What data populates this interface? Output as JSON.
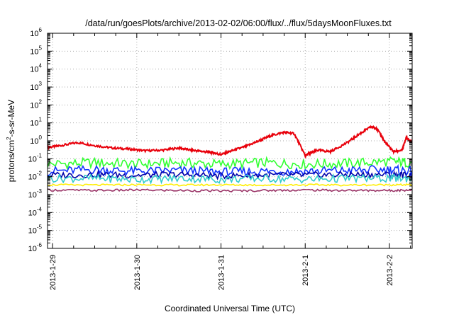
{
  "chart_data": {
    "type": "line",
    "title": "/data/run/goesPlots/archive/2013-02-02/06:00/flux/../flux/5daysMoonFluxes.txt",
    "xlabel": "Coordinated Universal Time (UTC)",
    "ylabel": {
      "prefix": "protons/cm",
      "sup": "2",
      "suffix": "-s-sr-MeV"
    },
    "y_scale": "log",
    "ylim": [
      1e-06,
      1000000.0
    ],
    "y_ticks": [
      {
        "base": "10",
        "exp": "-6"
      },
      {
        "base": "10",
        "exp": "-5"
      },
      {
        "base": "10",
        "exp": "-4"
      },
      {
        "base": "10",
        "exp": "-3"
      },
      {
        "base": "10",
        "exp": "-2"
      },
      {
        "base": "10",
        "exp": "-1"
      },
      {
        "base": "10",
        "exp": "0"
      },
      {
        "base": "10",
        "exp": "1"
      },
      {
        "base": "10",
        "exp": "2"
      },
      {
        "base": "10",
        "exp": "3"
      },
      {
        "base": "10",
        "exp": "4"
      },
      {
        "base": "10",
        "exp": "5"
      },
      {
        "base": "10",
        "exp": "6"
      }
    ],
    "x_ticks": [
      "2013-1-29",
      "2013-1-30",
      "2013-1-31",
      "2013-2-1",
      "2013-2-2"
    ],
    "xlim_days": [
      -2.06,
      2.27
    ],
    "grid": true,
    "series": [
      {
        "color": "#e8000b",
        "x": [
          -2.06,
          -1.9,
          -1.7,
          -1.5,
          -1.3,
          -1.1,
          -0.9,
          -0.7,
          -0.5,
          -0.35,
          -0.2,
          -0.1,
          0.0,
          0.15,
          0.3,
          0.45,
          0.6,
          0.75,
          0.87,
          1.0,
          1.05,
          1.15,
          1.3,
          1.5,
          1.65,
          1.78,
          1.85,
          1.95,
          2.05,
          2.15,
          2.2,
          2.27
        ],
        "y": [
          0.42,
          0.55,
          0.8,
          0.55,
          0.4,
          0.35,
          0.28,
          0.3,
          0.4,
          0.3,
          0.25,
          0.22,
          0.17,
          0.3,
          0.5,
          1.0,
          2.0,
          3.0,
          2.5,
          0.15,
          0.2,
          0.3,
          0.25,
          0.8,
          2.5,
          6.0,
          5.0,
          0.8,
          0.25,
          0.3,
          1.5,
          0.8
        ]
      },
      {
        "color": "#33ff33",
        "x": [
          -2.06,
          -1.5,
          -1.0,
          -0.5,
          0.0,
          0.5,
          1.0,
          1.5,
          2.0,
          2.27
        ],
        "y": [
          0.05,
          0.06,
          0.05,
          0.06,
          0.05,
          0.06,
          0.05,
          0.055,
          0.07,
          0.06
        ]
      },
      {
        "color": "#1133ff",
        "x": [
          -2.06,
          -1.5,
          -1.0,
          -0.5,
          0.0,
          0.5,
          1.0,
          1.5,
          2.0,
          2.27
        ],
        "y": [
          0.02,
          0.025,
          0.02,
          0.022,
          0.018,
          0.02,
          0.02,
          0.022,
          0.025,
          0.02
        ]
      },
      {
        "color": "#0000aa",
        "x": [
          -2.06,
          -1.5,
          -1.0,
          -0.5,
          0.0,
          0.5,
          1.0,
          1.5,
          2.0,
          2.27
        ],
        "y": [
          0.012,
          0.013,
          0.012,
          0.013,
          0.011,
          0.012,
          0.012,
          0.013,
          0.013,
          0.012
        ]
      },
      {
        "color": "#33cccc",
        "x": [
          -2.06,
          -1.5,
          -1.0,
          -0.5,
          0.0,
          0.5,
          1.0,
          1.5,
          2.0,
          2.27
        ],
        "y": [
          0.008,
          0.008,
          0.007,
          0.008,
          0.007,
          0.008,
          0.007,
          0.008,
          0.008,
          0.008
        ]
      },
      {
        "color": "#ffee00",
        "x": [
          -2.06,
          -1.5,
          -1.0,
          -0.5,
          0.0,
          0.5,
          1.0,
          1.5,
          2.0,
          2.27
        ],
        "y": [
          0.0035,
          0.0034,
          0.0035,
          0.0034,
          0.0035,
          0.0034,
          0.0035,
          0.0034,
          0.0035,
          0.0035
        ]
      },
      {
        "color": "#993366",
        "x": [
          -2.06,
          -1.5,
          -1.0,
          -0.5,
          0.0,
          0.5,
          1.0,
          1.5,
          2.0,
          2.27
        ],
        "y": [
          0.0018,
          0.0017,
          0.0018,
          0.0017,
          0.0016,
          0.0017,
          0.0018,
          0.0017,
          0.0017,
          0.0018
        ]
      }
    ]
  }
}
